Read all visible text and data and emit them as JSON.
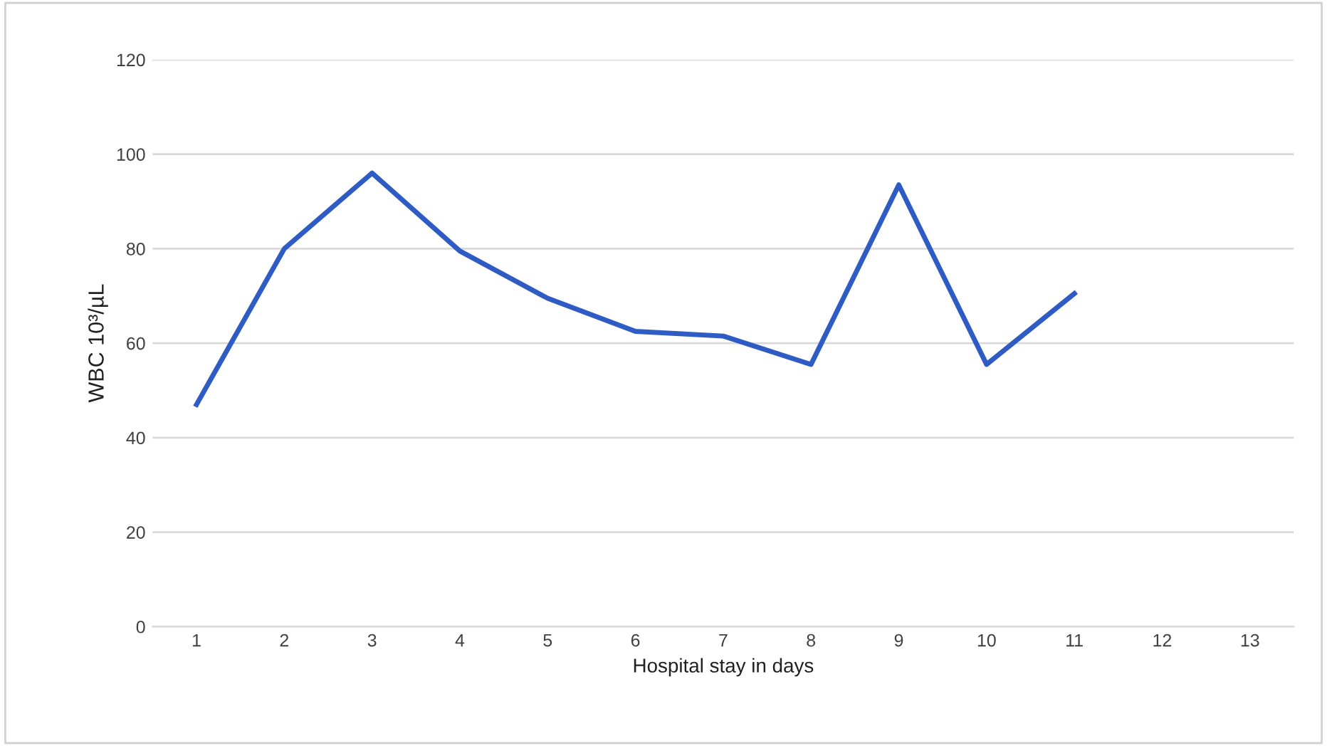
{
  "chart_data": {
    "type": "line",
    "xlabel": "Hospital stay in days",
    "ylabel": "WBC 10³/µL",
    "categories": [
      "1",
      "2",
      "3",
      "4",
      "5",
      "6",
      "7",
      "8",
      "9",
      "10",
      "11",
      "12",
      "13"
    ],
    "series": [
      {
        "color": "#2f5cc4",
        "values": [
          47,
          80,
          96,
          79.5,
          69.5,
          62.5,
          61.5,
          55.5,
          93.5,
          55.5,
          70.5,
          null,
          null
        ]
      }
    ],
    "ylim": [
      0,
      120
    ],
    "yticks": [
      0,
      20,
      40,
      60,
      80,
      100,
      120
    ],
    "grid": "y",
    "marker": "none",
    "line_style": "solid"
  }
}
